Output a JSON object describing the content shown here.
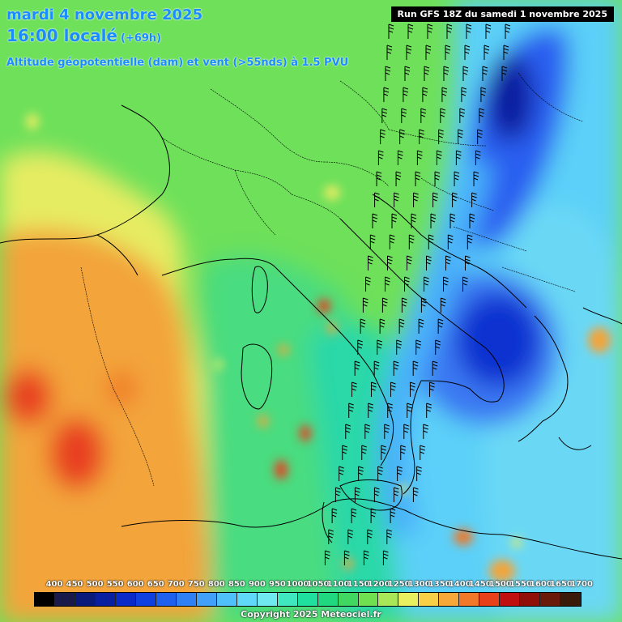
{
  "header": {
    "date": "mardi 4 novembre 2025",
    "time": "16:00 localé",
    "lead": "(+69h)",
    "parameter": "Altitude géopotentielle (dam) et vent (>55nds) à 1.5 PVU"
  },
  "run_label": "Run GFS 18Z du samedi 1 novembre 2025",
  "scale": {
    "labels": [
      "400",
      "450",
      "500",
      "550",
      "600",
      "650",
      "700",
      "750",
      "800",
      "850",
      "900",
      "950",
      "1000",
      "1050",
      "1100",
      "1150",
      "1200",
      "1250",
      "1300",
      "1350",
      "1400",
      "1450",
      "1500",
      "1550",
      "1600",
      "1650",
      "1700"
    ],
    "colors": [
      "#000000",
      "#1a1a4a",
      "#0a1a7a",
      "#0a1fa0",
      "#0a2ac8",
      "#1040e0",
      "#2060ee",
      "#3080f5",
      "#40a0fa",
      "#50c0fb",
      "#60d8fa",
      "#70e8f0",
      "#40e8c0",
      "#20e0a0",
      "#20d880",
      "#40d860",
      "#70e050",
      "#a8e858",
      "#e8f060",
      "#f8d048",
      "#f8a838",
      "#f07828",
      "#e84018",
      "#c01010",
      "#901008",
      "#6a1a08",
      "#3a1a08"
    ]
  },
  "copyright": "Copyright 2025 Meteociel.fr"
}
